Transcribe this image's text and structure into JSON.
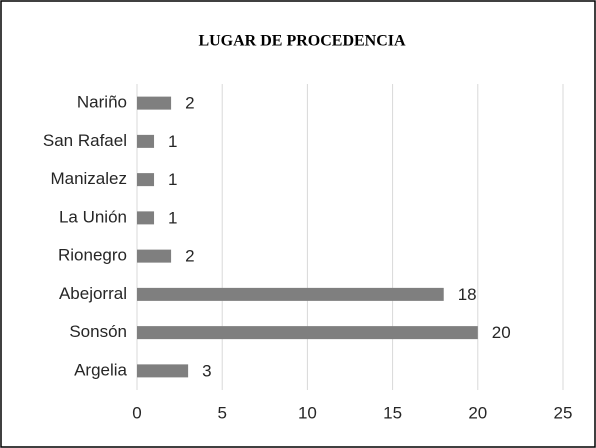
{
  "chart_data": {
    "type": "bar",
    "orientation": "horizontal",
    "title": "LUGAR DE PROCEDENCIA",
    "categories": [
      "Nariño",
      "San Rafael",
      "Manizalez",
      "La Unión",
      "Rionegro",
      "Abejorral",
      "Sonsón",
      "Argelia"
    ],
    "values": [
      2,
      1,
      1,
      1,
      2,
      18,
      20,
      3
    ],
    "color": "#7f7f7f",
    "xlim": [
      0,
      25
    ],
    "xticks": [
      0,
      5,
      10,
      15,
      20,
      25
    ],
    "grid": true
  }
}
